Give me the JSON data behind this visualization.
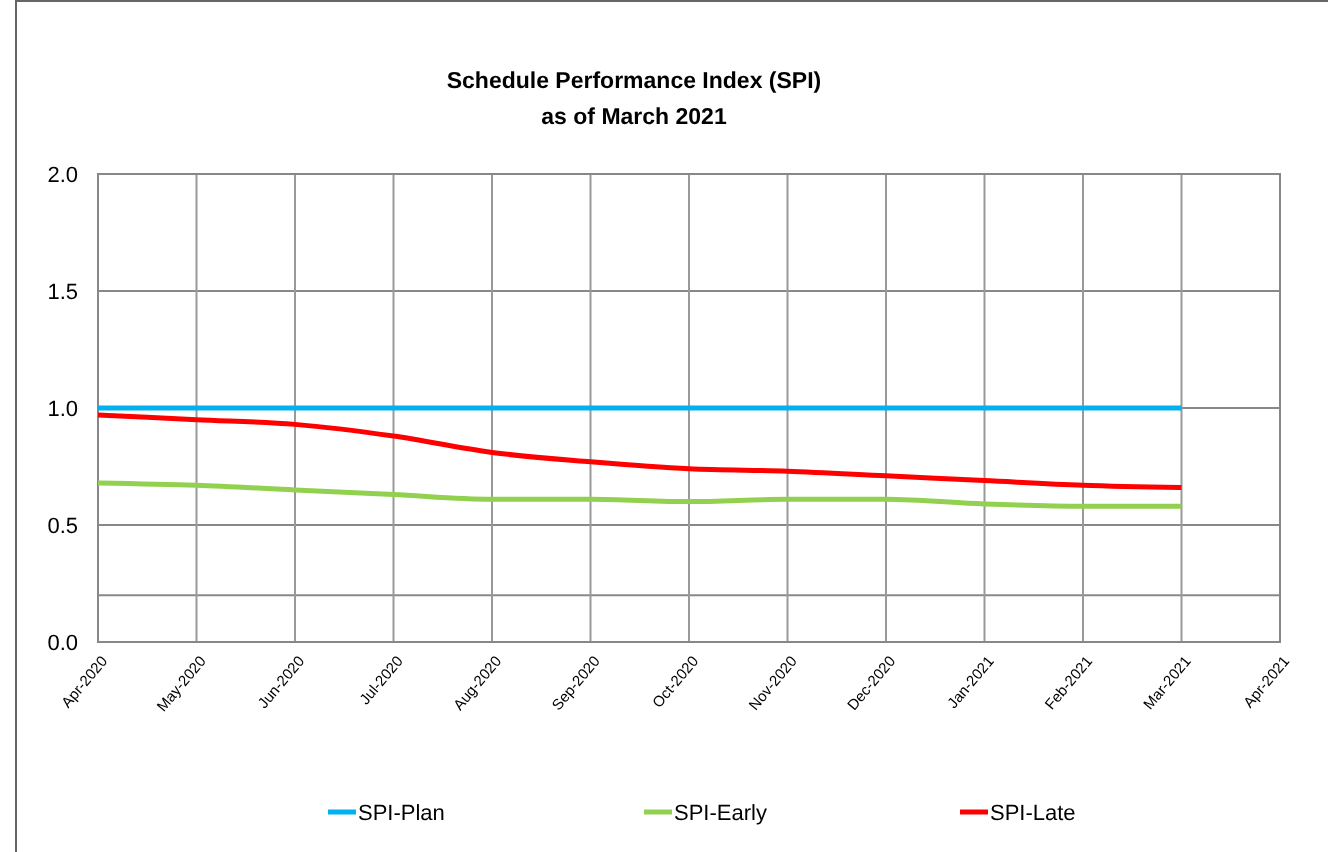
{
  "chart_data": {
    "type": "line",
    "title": "Schedule Performance Index (SPI)\nas of March 2021",
    "categories": [
      "Apr-2020",
      "May-2020",
      "Jun-2020",
      "Jul-2020",
      "Aug-2020",
      "Sep-2020",
      "Oct-2020",
      "Nov-2020",
      "Dec-2020",
      "Jan-2021",
      "Feb-2021",
      "Mar-2021",
      "Apr-2021"
    ],
    "series": [
      {
        "name": "SPI-Plan",
        "color": "#00b0f0",
        "values": [
          1.0,
          1.0,
          1.0,
          1.0,
          1.0,
          1.0,
          1.0,
          1.0,
          1.0,
          1.0,
          1.0,
          1.0,
          null
        ]
      },
      {
        "name": "SPI-Early",
        "color": "#92d050",
        "values": [
          0.68,
          0.67,
          0.65,
          0.63,
          0.61,
          0.61,
          0.6,
          0.61,
          0.61,
          0.59,
          0.58,
          0.58,
          null
        ]
      },
      {
        "name": "SPI-Late",
        "color": "#ff0000",
        "values": [
          0.97,
          0.95,
          0.93,
          0.88,
          0.81,
          0.77,
          0.74,
          0.73,
          0.71,
          0.69,
          0.67,
          0.66,
          null
        ]
      }
    ],
    "ylim": [
      0,
      2
    ],
    "yticks": [
      {
        "value": 0,
        "label": "0.0"
      },
      {
        "value": 0.2,
        "label": null
      },
      {
        "value": 0.5,
        "label": "0.5"
      },
      {
        "value": 1,
        "label": "1.0"
      },
      {
        "value": 1.5,
        "label": "1.5"
      },
      {
        "value": 2,
        "label": "2.0"
      }
    ],
    "grid": true,
    "legend": "bottom",
    "marker": "none",
    "line_style": "solid"
  }
}
